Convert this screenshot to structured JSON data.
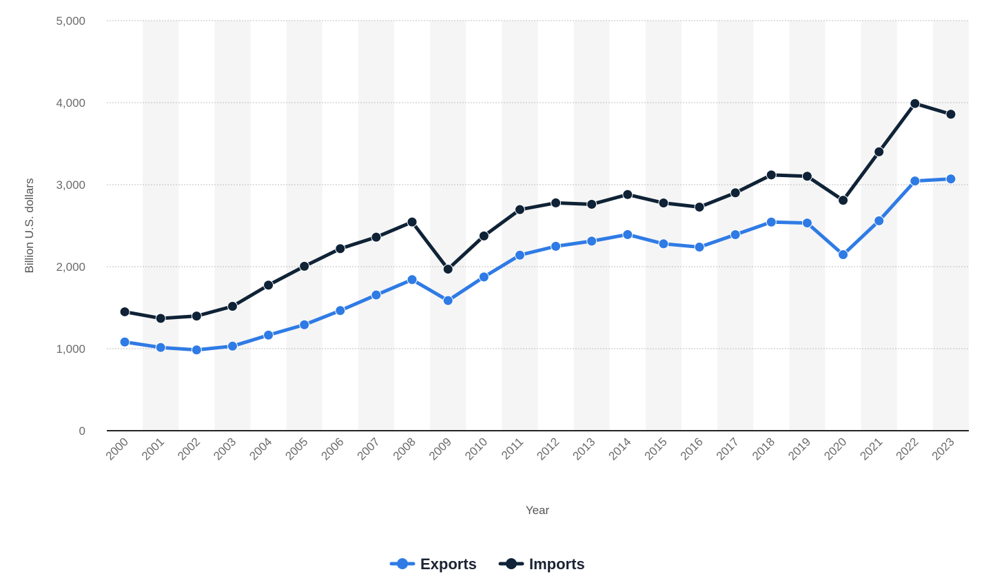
{
  "chart_data": {
    "type": "line",
    "xlabel": "Year",
    "ylabel": "Billion U.S. dollars",
    "ylim": [
      0,
      5000
    ],
    "yticks": [
      0,
      1000,
      2000,
      3000,
      4000,
      5000
    ],
    "ytick_labels": [
      "0",
      "1,000",
      "2,000",
      "3,000",
      "4,000",
      "5,000"
    ],
    "grid": "horizontal dotted",
    "legend_position": "bottom-center",
    "categories": [
      "2000",
      "2001",
      "2002",
      "2003",
      "2004",
      "2005",
      "2006",
      "2007",
      "2008",
      "2009",
      "2010",
      "2011",
      "2012",
      "2013",
      "2014",
      "2015",
      "2016",
      "2017",
      "2018",
      "2019",
      "2020",
      "2021",
      "2022",
      "2023"
    ],
    "series": [
      {
        "name": "Exports",
        "color": "#2f7be5",
        "values": [
          1082,
          1015,
          985,
          1031,
          1166,
          1292,
          1465,
          1655,
          1842,
          1587,
          1875,
          2141,
          2249,
          2312,
          2392,
          2279,
          2239,
          2391,
          2544,
          2533,
          2147,
          2560,
          3045,
          3070
        ]
      },
      {
        "name": "Imports",
        "color": "#0f2236",
        "values": [
          1450,
          1370,
          1398,
          1517,
          1775,
          2005,
          2220,
          2360,
          2545,
          1970,
          2375,
          2696,
          2778,
          2761,
          2880,
          2777,
          2727,
          2901,
          3119,
          3103,
          2810,
          3401,
          3990,
          3859
        ]
      }
    ]
  }
}
